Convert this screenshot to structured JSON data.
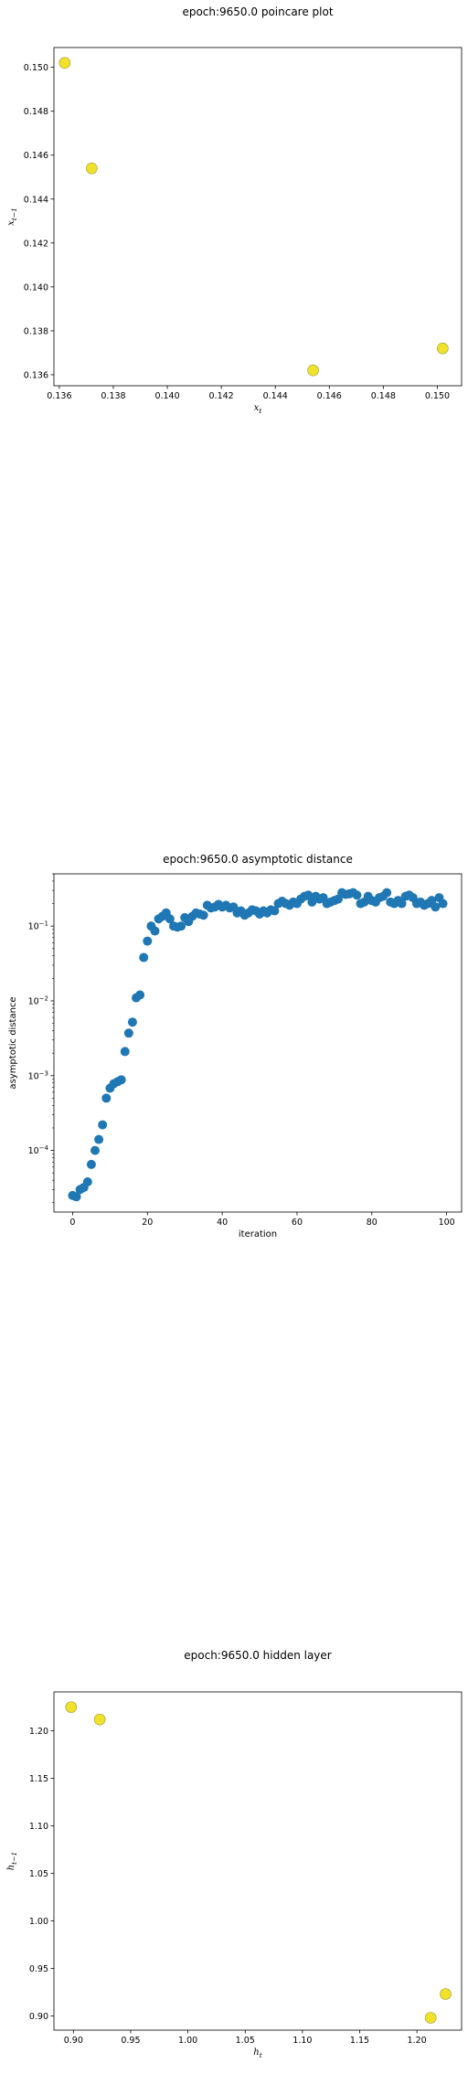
{
  "chart_data": [
    {
      "type": "scatter",
      "title": "epoch:9650.0 poincare plot",
      "xlabel_main": "x",
      "xlabel_sub": "t",
      "ylabel_main": "x",
      "ylabel_sub": "t−1",
      "xlim": [
        0.1358,
        0.1509
      ],
      "ylim": [
        0.1355,
        0.1509
      ],
      "xticks": [
        0.136,
        0.138,
        0.14,
        0.142,
        0.144,
        0.146,
        0.148,
        0.15
      ],
      "yticks": [
        0.136,
        0.138,
        0.14,
        0.142,
        0.144,
        0.146,
        0.148,
        0.15
      ],
      "tick_decimals": 3,
      "point_color": "#f0e12a",
      "point_edge": "#9a9a3a",
      "points": [
        {
          "x": 0.1362,
          "y": 0.1502
        },
        {
          "x": 0.1372,
          "y": 0.1454
        },
        {
          "x": 0.1454,
          "y": 0.1362
        },
        {
          "x": 0.1502,
          "y": 0.1372
        }
      ]
    },
    {
      "type": "scatter",
      "title": "epoch:9650.0 asymptotic distance",
      "xlabel": "iteration",
      "ylabel": "asymptotic distance",
      "yscale": "log",
      "xlim": [
        -5,
        104
      ],
      "ylim": [
        1.5e-05,
        0.5
      ],
      "xticks": [
        0,
        20,
        40,
        60,
        80,
        100
      ],
      "yticks_exp": [
        -4,
        -3,
        -2,
        -1
      ],
      "point_color": "#1f77b4",
      "x": [
        0,
        1,
        2,
        3,
        4,
        5,
        6,
        7,
        8,
        9,
        10,
        11,
        12,
        13,
        14,
        15,
        16,
        17,
        18,
        19,
        20,
        21,
        22,
        23,
        24,
        25,
        26,
        27,
        28,
        29,
        30,
        31,
        32,
        33,
        34,
        35,
        36,
        37,
        38,
        39,
        40,
        41,
        42,
        43,
        44,
        45,
        46,
        47,
        48,
        49,
        50,
        51,
        52,
        53,
        54,
        55,
        56,
        57,
        58,
        59,
        60,
        61,
        62,
        63,
        64,
        65,
        66,
        67,
        68,
        69,
        70,
        71,
        72,
        73,
        74,
        75,
        76,
        77,
        78,
        79,
        80,
        81,
        82,
        83,
        84,
        85,
        86,
        87,
        88,
        89,
        90,
        91,
        92,
        93,
        94,
        95,
        96,
        97,
        98,
        99
      ],
      "y": [
        2.5e-05,
        2.4e-05,
        3e-05,
        3.2e-05,
        3.8e-05,
        6.5e-05,
        0.0001,
        0.00014,
        0.00022,
        0.0005,
        0.00068,
        0.00078,
        0.00083,
        0.00088,
        0.0021,
        0.0037,
        0.0052,
        0.011,
        0.012,
        0.038,
        0.063,
        0.1,
        0.086,
        0.125,
        0.135,
        0.15,
        0.125,
        0.1,
        0.097,
        0.1,
        0.13,
        0.115,
        0.135,
        0.15,
        0.145,
        0.14,
        0.19,
        0.175,
        0.18,
        0.195,
        0.18,
        0.19,
        0.175,
        0.18,
        0.15,
        0.16,
        0.14,
        0.15,
        0.165,
        0.16,
        0.145,
        0.16,
        0.15,
        0.165,
        0.16,
        0.2,
        0.215,
        0.2,
        0.19,
        0.21,
        0.2,
        0.23,
        0.25,
        0.26,
        0.21,
        0.25,
        0.23,
        0.24,
        0.2,
        0.21,
        0.22,
        0.23,
        0.28,
        0.265,
        0.27,
        0.28,
        0.26,
        0.2,
        0.21,
        0.25,
        0.22,
        0.21,
        0.24,
        0.25,
        0.28,
        0.21,
        0.2,
        0.22,
        0.2,
        0.25,
        0.26,
        0.24,
        0.2,
        0.21,
        0.19,
        0.2,
        0.22,
        0.18,
        0.24,
        0.2
      ]
    },
    {
      "type": "scatter",
      "title": "epoch:9650.0 hidden layer",
      "xlabel_main": "h",
      "xlabel_sub": "t",
      "ylabel_main": "h",
      "ylabel_sub": "t−1",
      "xlim": [
        0.883,
        1.239
      ],
      "ylim": [
        0.885,
        1.241
      ],
      "xticks": [
        0.9,
        0.95,
        1.0,
        1.05,
        1.1,
        1.15,
        1.2
      ],
      "yticks": [
        0.9,
        0.95,
        1.0,
        1.05,
        1.1,
        1.15,
        1.2
      ],
      "tick_decimals": 2,
      "point_color": "#f0e12a",
      "point_edge": "#9a9a3a",
      "points": [
        {
          "x": 0.898,
          "y": 1.225
        },
        {
          "x": 0.923,
          "y": 1.212
        },
        {
          "x": 1.212,
          "y": 0.898
        },
        {
          "x": 1.225,
          "y": 0.923
        }
      ]
    }
  ]
}
